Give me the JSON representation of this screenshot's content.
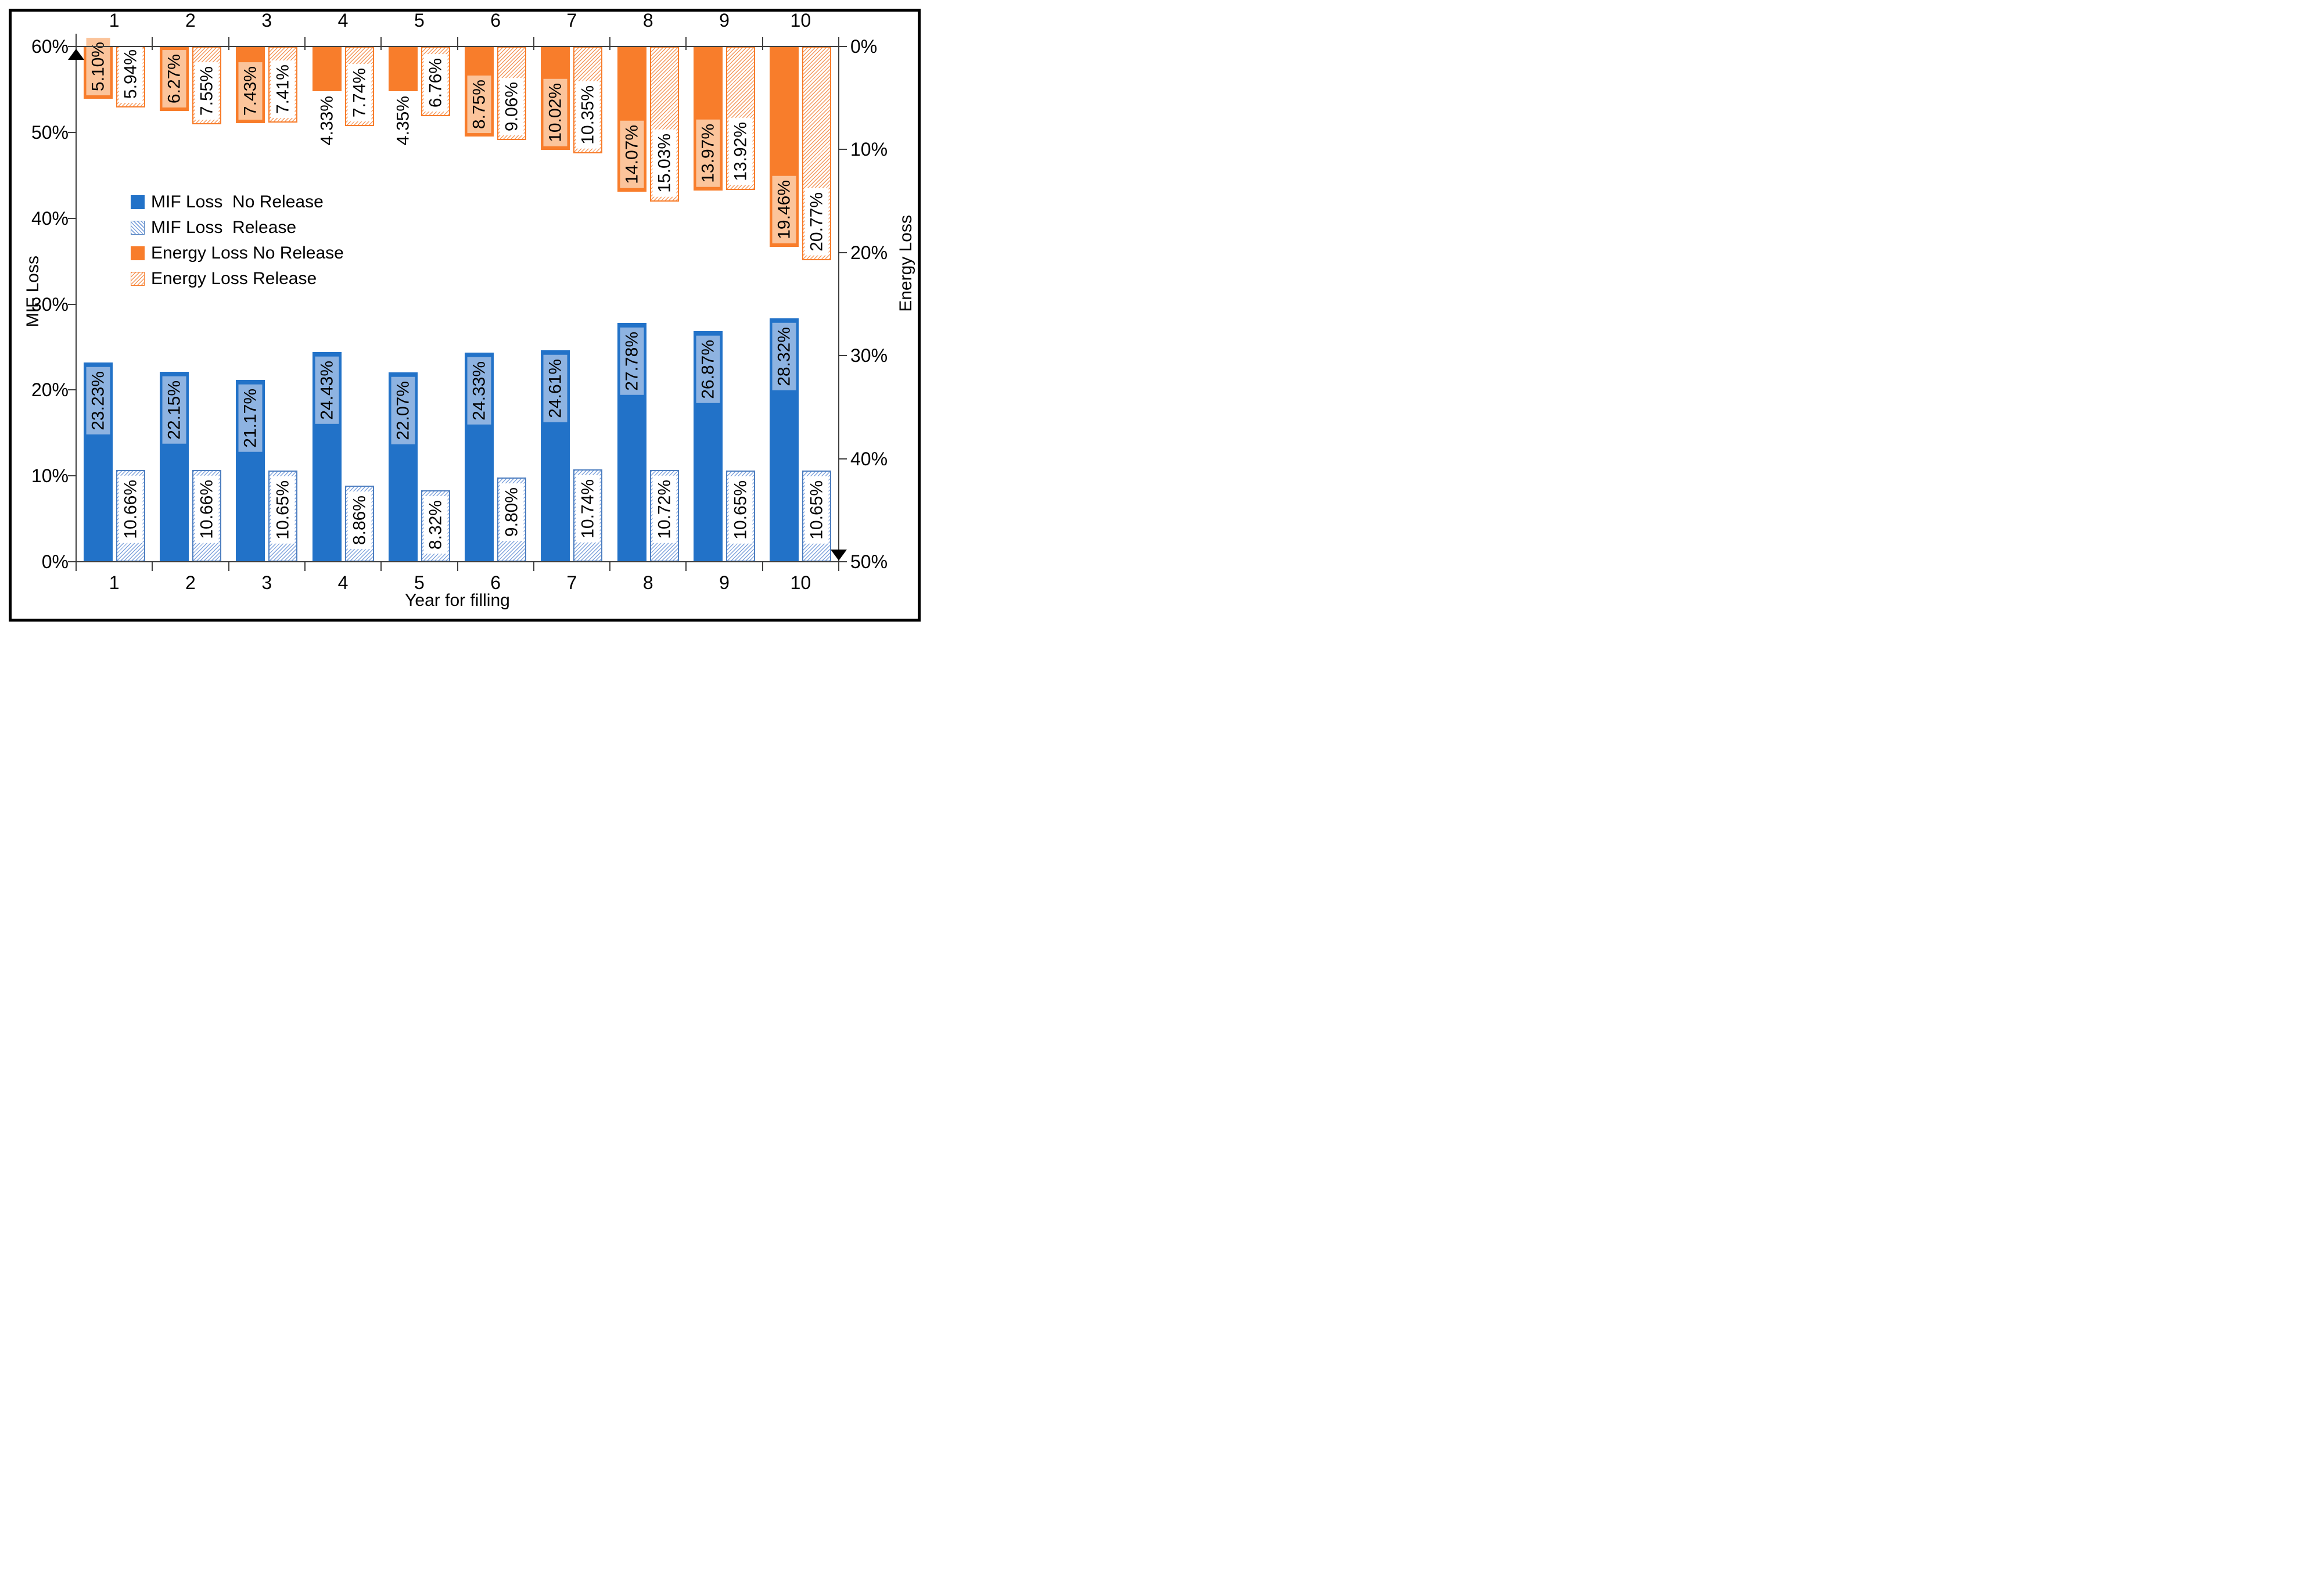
{
  "chart_data": {
    "type": "bar",
    "title": "",
    "categories": [
      "1",
      "2",
      "3",
      "4",
      "5",
      "6",
      "7",
      "8",
      "9",
      "10"
    ],
    "x_axis": {
      "label": "Year for filling",
      "tick_labels_top": [
        "1",
        "2",
        "3",
        "4",
        "5",
        "6",
        "7",
        "8",
        "9",
        "10"
      ],
      "tick_labels_bottom": [
        "1",
        "2",
        "3",
        "4",
        "5",
        "6",
        "7",
        "8",
        "9",
        "10"
      ]
    },
    "left_axis": {
      "label": "MIF Loss",
      "min": 0,
      "max": 60,
      "tick_labels": [
        "0%",
        "10%",
        "20%",
        "30%",
        "40%",
        "50%",
        "60%"
      ],
      "marker": "black-up-triangle-at-top"
    },
    "right_axis": {
      "label": "Energy Loss",
      "min": 0,
      "max": 50,
      "inverted": true,
      "tick_labels": [
        "0%",
        "10%",
        "20%",
        "30%",
        "40%",
        "50%"
      ],
      "marker": "black-down-triangle-at-bottom"
    },
    "grid": "off",
    "legend_position": "inside-upper-left",
    "axis_line_color": "#3F3F3F",
    "marker_color": "#000000",
    "series": [
      {
        "name": "MIF Loss  No Release",
        "axis": "left",
        "anchor": "bottom",
        "pattern": "solid",
        "color_key": "blue",
        "color": "#2272C8",
        "label_bg": "#8EB3E1",
        "label_placement": "inside-top",
        "values": [
          23.23,
          22.15,
          21.17,
          24.43,
          22.07,
          24.33,
          24.61,
          27.78,
          26.87,
          28.32
        ],
        "labels": [
          "23.23%",
          "22.15%",
          "21.17%",
          "24.43%",
          "22.07%",
          "24.33%",
          "24.61%",
          "27.78%",
          "26.87%",
          "28.32%"
        ],
        "outside_label_indices": []
      },
      {
        "name": "MIF Loss  Release",
        "axis": "left",
        "anchor": "bottom",
        "pattern": "hatch",
        "color_key": "blue",
        "color": "#4E7FC0",
        "hatch_line_color": "#7FA3DC",
        "label_bg": "#FFFFFF",
        "label_placement": "inside-top",
        "values": [
          10.66,
          10.66,
          10.65,
          8.86,
          8.32,
          9.8,
          10.74,
          10.72,
          10.65,
          10.65
        ],
        "labels": [
          "10.66%",
          "10.66%",
          "10.65%",
          "8.86%",
          "8.32%",
          "9.80%",
          "10.74%",
          "10.72%",
          "10.65%",
          "10.65%"
        ],
        "outside_label_indices": []
      },
      {
        "name": "Energy Loss No Release",
        "axis": "right",
        "anchor": "top",
        "pattern": "solid",
        "color_key": "orange",
        "color": "#F87D2B",
        "label_bg": "#FBC49B",
        "label_placement": "inside-bottom",
        "values": [
          5.1,
          6.27,
          7.43,
          4.33,
          4.35,
          8.75,
          10.02,
          14.07,
          13.97,
          19.46
        ],
        "labels": [
          "5.10%",
          "6.27%",
          "7.43%",
          "4.33%",
          "4.35%",
          "8.75%",
          "10.02%",
          "14.07%",
          "13.97%",
          "19.46%"
        ],
        "outside_label_indices": [
          3,
          4
        ]
      },
      {
        "name": "Energy Loss Release",
        "axis": "right",
        "anchor": "top",
        "pattern": "hatch",
        "color_key": "orange",
        "color": "#F87D2B",
        "hatch_line_color": "#F4985C",
        "label_bg": "#FFFFFF",
        "label_placement": "inside-bottom",
        "values": [
          5.94,
          7.55,
          7.41,
          7.74,
          6.76,
          9.06,
          10.35,
          15.03,
          13.92,
          20.77
        ],
        "labels": [
          "5.94%",
          "7.55%",
          "7.41%",
          "7.74%",
          "6.76%",
          "9.06%",
          "10.35%",
          "15.03%",
          "13.92%",
          "20.77%"
        ],
        "outside_label_indices": []
      }
    ]
  }
}
